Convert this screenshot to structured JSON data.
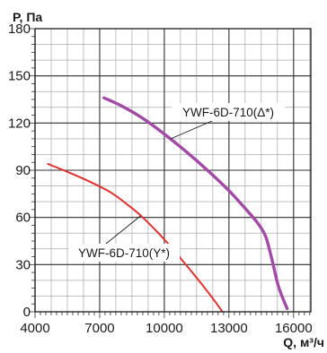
{
  "chart_data": {
    "type": "line",
    "title": "",
    "xlabel": "Q, м³/ч",
    "ylabel": "P, Па",
    "xlim": [
      4000,
      16800
    ],
    "ylim": [
      0,
      180
    ],
    "x_ticks": [
      4000,
      7000,
      10000,
      13000,
      16000
    ],
    "y_ticks": [
      0,
      30,
      60,
      90,
      120,
      150,
      180
    ],
    "x_tick_labels": [
      "4000",
      "7000",
      "10000",
      "13000",
      "16000"
    ],
    "y_tick_labels": [
      "0",
      "30",
      "60",
      "90",
      "120",
      "150",
      "180"
    ],
    "grid": true,
    "legend": "none",
    "series": [
      {
        "name": "YWF-6D-710(Δ*)",
        "color": "#a24aa6",
        "x": [
          7200,
          8000,
          9000,
          10000,
          11000,
          12000,
          13000,
          13800,
          14300,
          14700,
          15000,
          15300,
          15700
        ],
        "y": [
          136,
          131,
          123,
          113,
          102,
          90,
          77,
          65,
          57,
          48,
          33,
          16,
          2
        ]
      },
      {
        "name": "YWF-6D-710(Y*)",
        "color": "#e03030",
        "x": [
          4600,
          5500,
          6500,
          7500,
          8300,
          9000,
          10000,
          11000,
          12000,
          12800,
          13450
        ],
        "y": [
          94,
          89,
          83,
          76,
          68,
          60,
          46,
          30,
          13,
          -2,
          -16
        ]
      }
    ],
    "annotations": [
      {
        "text": "YWF-6D-710(Δ*)",
        "series": 0
      },
      {
        "text": "YWF-6D-710(Y*)",
        "series": 1
      }
    ]
  }
}
